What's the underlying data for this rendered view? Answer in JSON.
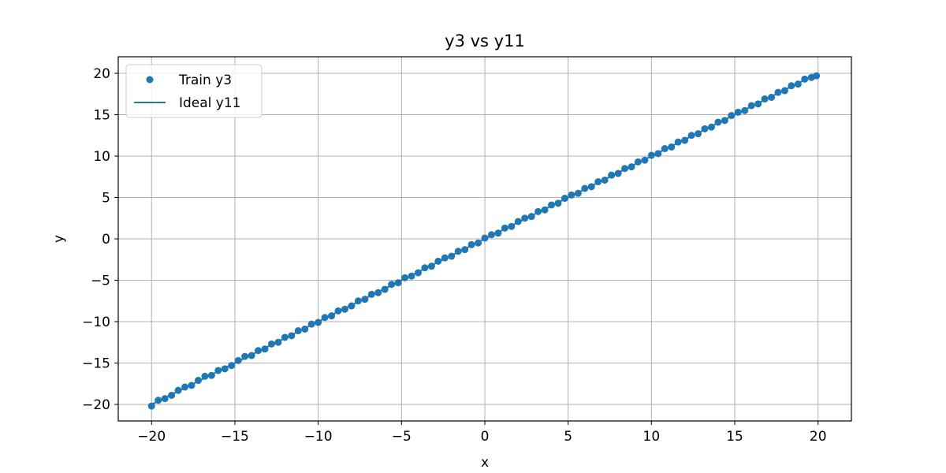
{
  "chart_data": {
    "type": "scatter",
    "title": "y3 vs y11",
    "xlabel": "x",
    "ylabel": "y",
    "xlim": [
      -22,
      22
    ],
    "ylim": [
      -22,
      22
    ],
    "xticks": [
      -20,
      -15,
      -10,
      -5,
      0,
      5,
      10,
      15,
      20
    ],
    "yticks": [
      -20,
      -15,
      -10,
      -5,
      0,
      5,
      10,
      15,
      20
    ],
    "xtick_labels": [
      "−20",
      "−15",
      "−10",
      "−5",
      "0",
      "5",
      "10",
      "15",
      "20"
    ],
    "ytick_labels": [
      "−20",
      "−15",
      "−10",
      "−5",
      "0",
      "5",
      "10",
      "15",
      "20"
    ],
    "grid": true,
    "legend_position": "top-left",
    "series": [
      {
        "name": "Train y3",
        "kind": "scatter",
        "color": "#1f77b4",
        "x": [
          -20.0,
          -19.6,
          -19.2,
          -18.8,
          -18.4,
          -18.0,
          -17.6,
          -17.2,
          -16.8,
          -16.4,
          -16.0,
          -15.6,
          -15.2,
          -14.8,
          -14.4,
          -14.0,
          -13.6,
          -13.2,
          -12.8,
          -12.4,
          -12.0,
          -11.6,
          -11.2,
          -10.8,
          -10.4,
          -10.0,
          -9.6,
          -9.2,
          -8.8,
          -8.4,
          -8.0,
          -7.6,
          -7.2,
          -6.8,
          -6.4,
          -6.0,
          -5.6,
          -5.2,
          -4.8,
          -4.4,
          -4.0,
          -3.6,
          -3.2,
          -2.8,
          -2.4,
          -2.0,
          -1.6,
          -1.2,
          -0.8,
          -0.4,
          0.0,
          0.4,
          0.8,
          1.2,
          1.6,
          2.0,
          2.4,
          2.8,
          3.2,
          3.6,
          4.0,
          4.4,
          4.8,
          5.2,
          5.6,
          6.0,
          6.4,
          6.8,
          7.2,
          7.6,
          8.0,
          8.4,
          8.8,
          9.2,
          9.6,
          10.0,
          10.4,
          10.8,
          11.2,
          11.6,
          12.0,
          12.4,
          12.8,
          13.2,
          13.6,
          14.0,
          14.4,
          14.8,
          15.2,
          15.6,
          16.0,
          16.4,
          16.8,
          17.2,
          17.6,
          18.0,
          18.4,
          18.8,
          19.2,
          19.6,
          19.9
        ],
        "y": [
          -20.2,
          -19.5,
          -19.3,
          -18.9,
          -18.3,
          -17.9,
          -17.7,
          -17.1,
          -16.6,
          -16.5,
          -15.9,
          -15.7,
          -15.3,
          -14.7,
          -14.2,
          -14.1,
          -13.5,
          -13.3,
          -12.7,
          -12.5,
          -11.9,
          -11.7,
          -11.1,
          -10.9,
          -10.3,
          -10.1,
          -9.5,
          -9.3,
          -8.7,
          -8.5,
          -8.1,
          -7.5,
          -7.3,
          -6.7,
          -6.5,
          -6.1,
          -5.5,
          -5.3,
          -4.7,
          -4.5,
          -4.1,
          -3.5,
          -3.3,
          -2.7,
          -2.3,
          -2.1,
          -1.5,
          -1.3,
          -0.7,
          -0.5,
          0.1,
          0.5,
          0.7,
          1.3,
          1.5,
          2.1,
          2.5,
          2.7,
          3.3,
          3.5,
          4.1,
          4.3,
          4.9,
          5.3,
          5.5,
          6.1,
          6.3,
          6.9,
          7.1,
          7.7,
          7.9,
          8.5,
          8.7,
          9.3,
          9.5,
          10.1,
          10.3,
          10.9,
          11.1,
          11.7,
          11.9,
          12.5,
          12.7,
          13.3,
          13.5,
          14.1,
          14.3,
          14.9,
          15.3,
          15.5,
          16.1,
          16.3,
          16.9,
          17.1,
          17.7,
          17.9,
          18.5,
          18.7,
          19.3,
          19.5,
          19.7
        ]
      },
      {
        "name": "Ideal y11",
        "kind": "line",
        "color": "#1f77b4",
        "x": [
          -20,
          20
        ],
        "y": [
          -20,
          20
        ]
      }
    ]
  }
}
